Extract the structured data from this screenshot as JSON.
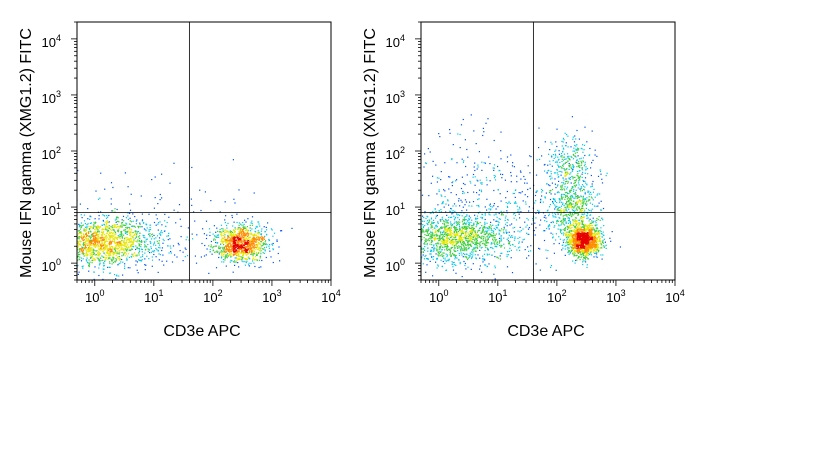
{
  "chart_data": [
    {
      "type": "scatter",
      "subtype": "flow-cytometry-density-dot-plot",
      "title": "",
      "xlabel": "CD3e APC",
      "ylabel": "Mouse IFN gamma (XMG1.2) FITC",
      "x_scale": "log",
      "y_scale": "log",
      "xlim": [
        0.5,
        10000
      ],
      "ylim": [
        0.5,
        20000
      ],
      "x_ticks": [
        {
          "value": 1,
          "base": "10",
          "exp": "0"
        },
        {
          "value": 10,
          "base": "10",
          "exp": "1"
        },
        {
          "value": 100,
          "base": "10",
          "exp": "2"
        },
        {
          "value": 1000,
          "base": "10",
          "exp": "3"
        },
        {
          "value": 10000,
          "base": "10",
          "exp": "4"
        }
      ],
      "y_ticks": [
        {
          "value": 1,
          "base": "10",
          "exp": "0"
        },
        {
          "value": 10,
          "base": "10",
          "exp": "1"
        },
        {
          "value": 100,
          "base": "10",
          "exp": "2"
        },
        {
          "value": 1000,
          "base": "10",
          "exp": "3"
        },
        {
          "value": 10000,
          "base": "10",
          "exp": "4"
        }
      ],
      "quadrant_gate": {
        "x": 40,
        "y": 8
      },
      "populations": [
        {
          "center": [
            1.3,
            2.4
          ],
          "spread": [
            0.45,
            0.22
          ],
          "n": 1500
        },
        {
          "center": [
            290,
            2.3
          ],
          "spread": [
            0.22,
            0.16
          ],
          "n": 1100
        },
        {
          "center": [
            12,
            2.7
          ],
          "spread": [
            0.6,
            0.3
          ],
          "n": 160
        },
        {
          "center": [
            8,
            7
          ],
          "spread": [
            0.9,
            0.5
          ],
          "n": 90
        }
      ],
      "grid": false,
      "legend": "none"
    },
    {
      "type": "scatter",
      "subtype": "flow-cytometry-density-dot-plot",
      "title": "",
      "xlabel": "CD3e APC",
      "ylabel": "Mouse IFN gamma (XMG1.2) FITC",
      "x_scale": "log",
      "y_scale": "log",
      "xlim": [
        0.5,
        10000
      ],
      "ylim": [
        0.5,
        20000
      ],
      "x_ticks": [
        {
          "value": 1,
          "base": "10",
          "exp": "0"
        },
        {
          "value": 10,
          "base": "10",
          "exp": "1"
        },
        {
          "value": 100,
          "base": "10",
          "exp": "2"
        },
        {
          "value": 1000,
          "base": "10",
          "exp": "3"
        },
        {
          "value": 10000,
          "base": "10",
          "exp": "4"
        }
      ],
      "y_ticks": [
        {
          "value": 1,
          "base": "10",
          "exp": "0"
        },
        {
          "value": 10,
          "base": "10",
          "exp": "1"
        },
        {
          "value": 100,
          "base": "10",
          "exp": "2"
        },
        {
          "value": 1000,
          "base": "10",
          "exp": "3"
        },
        {
          "value": 10000,
          "base": "10",
          "exp": "4"
        }
      ],
      "quadrant_gate": {
        "x": 40,
        "y": 8
      },
      "populations": [
        {
          "center": [
            1.8,
            2.9
          ],
          "spread": [
            0.45,
            0.22
          ],
          "n": 1300
        },
        {
          "center": [
            280,
            2.6
          ],
          "spread": [
            0.14,
            0.14
          ],
          "n": 1300
        },
        {
          "center": [
            190,
            9
          ],
          "spread": [
            0.2,
            0.3
          ],
          "n": 550
        },
        {
          "center": [
            150,
            55
          ],
          "spread": [
            0.22,
            0.3
          ],
          "n": 320
        },
        {
          "center": [
            10,
            6
          ],
          "spread": [
            0.7,
            0.45
          ],
          "n": 380
        },
        {
          "center": [
            3,
            40
          ],
          "spread": [
            0.7,
            0.5
          ],
          "n": 160
        }
      ],
      "grid": false,
      "legend": "none"
    }
  ]
}
